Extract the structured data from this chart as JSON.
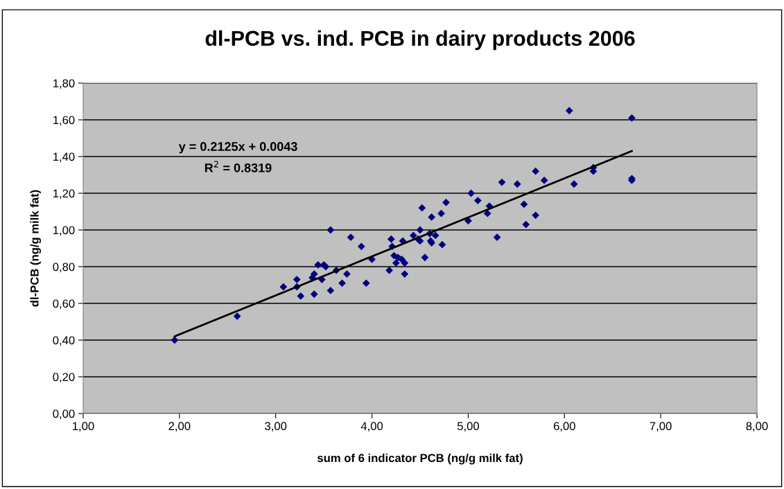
{
  "chart_data": {
    "type": "scatter",
    "title": "dl-PCB vs. ind. PCB in dairy products 2006",
    "xlabel": "sum of 6 indicator PCB (ng/g milk fat)",
    "ylabel": "dl-PCB (ng/g milk fat)",
    "annotations": [
      "y = 0.2125x + 0.0043",
      "R$^{2}$ = 0.8319"
    ],
    "xlim": [
      1,
      8
    ],
    "ylim": [
      0,
      1.8
    ],
    "xticks": [
      {
        "value": 1,
        "label": "1,00"
      },
      {
        "value": 2,
        "label": "2,00"
      },
      {
        "value": 3,
        "label": "3,00"
      },
      {
        "value": 4,
        "label": "4,00"
      },
      {
        "value": 5,
        "label": "5,00"
      },
      {
        "value": 6,
        "label": "6,00"
      },
      {
        "value": 7,
        "label": "7,00"
      },
      {
        "value": 8,
        "label": "8,00"
      }
    ],
    "yticks": [
      {
        "value": 0,
        "label": "0,00"
      },
      {
        "value": 0.2,
        "label": "0,20"
      },
      {
        "value": 0.4,
        "label": "0,40"
      },
      {
        "value": 0.6,
        "label": "0,60"
      },
      {
        "value": 0.8,
        "label": "0,80"
      },
      {
        "value": 1.0,
        "label": "1,00"
      },
      {
        "value": 1.2,
        "label": "1,20"
      },
      {
        "value": 1.4,
        "label": "1,40"
      },
      {
        "value": 1.6,
        "label": "1,60"
      },
      {
        "value": 1.8,
        "label": "1,80"
      }
    ],
    "grid": "y",
    "legend": false,
    "series": [
      {
        "marker": "diamond",
        "color": "#000080",
        "x": [
          1.95,
          2.6,
          3.08,
          3.22,
          3.22,
          3.26,
          3.38,
          3.4,
          3.4,
          3.44,
          3.48,
          3.5,
          3.52,
          3.57,
          3.57,
          3.63,
          3.69,
          3.74,
          3.78,
          3.89,
          3.94,
          4.0,
          4.18,
          4.2,
          4.21,
          4.23,
          4.25,
          4.27,
          4.31,
          4.32,
          4.34,
          4.34,
          4.43,
          4.48,
          4.5,
          4.5,
          4.52,
          4.55,
          4.6,
          4.61,
          4.62,
          4.62,
          4.66,
          4.72,
          4.73,
          4.77,
          5.0,
          5.03,
          5.1,
          5.2,
          5.22,
          5.3,
          5.35,
          5.51,
          5.58,
          5.6,
          5.7,
          5.7,
          5.79,
          6.05,
          6.1,
          6.3,
          6.3,
          6.7,
          6.7,
          6.7
        ],
        "values": [
          0.4,
          0.53,
          0.69,
          0.73,
          0.69,
          0.64,
          0.74,
          0.76,
          0.65,
          0.81,
          0.73,
          0.81,
          0.8,
          0.67,
          1.0,
          0.78,
          0.71,
          0.76,
          0.96,
          0.91,
          0.71,
          0.84,
          0.78,
          0.95,
          0.91,
          0.86,
          0.82,
          0.85,
          0.84,
          0.94,
          0.82,
          0.76,
          0.97,
          0.95,
          0.94,
          1.0,
          1.12,
          0.85,
          0.98,
          0.94,
          1.07,
          0.93,
          0.97,
          1.09,
          0.92,
          1.15,
          1.05,
          1.2,
          1.16,
          1.09,
          1.13,
          0.96,
          1.26,
          1.25,
          1.14,
          1.03,
          1.32,
          1.08,
          1.27,
          1.65,
          1.25,
          1.34,
          1.32,
          1.61,
          1.28,
          1.27
        ]
      },
      {
        "type": "line",
        "marker": "none",
        "color": "#000000",
        "x": [
          1.95,
          6.7
        ],
        "values": [
          0.42,
          1.43
        ]
      }
    ]
  }
}
